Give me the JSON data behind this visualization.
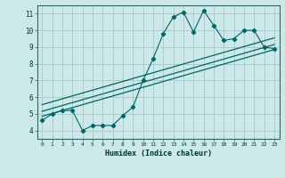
{
  "title": "",
  "xlabel": "Humidex (Indice chaleur)",
  "bg_color": "#cce8e8",
  "grid_color": "#aacccc",
  "line_color": "#006666",
  "xlim": [
    -0.5,
    23.5
  ],
  "ylim": [
    3.5,
    11.5
  ],
  "xticks": [
    0,
    1,
    2,
    3,
    4,
    5,
    6,
    7,
    8,
    9,
    10,
    11,
    12,
    13,
    14,
    15,
    16,
    17,
    18,
    19,
    20,
    21,
    22,
    23
  ],
  "yticks": [
    4,
    5,
    6,
    7,
    8,
    9,
    10,
    11
  ],
  "scatter_x": [
    0,
    1,
    2,
    3,
    4,
    5,
    6,
    7,
    8,
    9,
    10,
    11,
    12,
    13,
    14,
    15,
    16,
    17,
    18,
    19,
    20,
    21,
    22,
    23
  ],
  "scatter_y": [
    4.6,
    5.0,
    5.2,
    5.2,
    4.0,
    4.3,
    4.3,
    4.3,
    4.9,
    5.4,
    7.0,
    8.3,
    9.8,
    10.8,
    11.1,
    9.9,
    11.2,
    10.3,
    9.4,
    9.5,
    10.0,
    10.0,
    9.0,
    8.9
  ],
  "reg_lines": [
    [
      [
        0,
        23
      ],
      [
        4.85,
        8.85
      ]
    ],
    [
      [
        0,
        23
      ],
      [
        5.15,
        9.15
      ]
    ],
    [
      [
        0,
        23
      ],
      [
        5.55,
        9.55
      ]
    ]
  ]
}
